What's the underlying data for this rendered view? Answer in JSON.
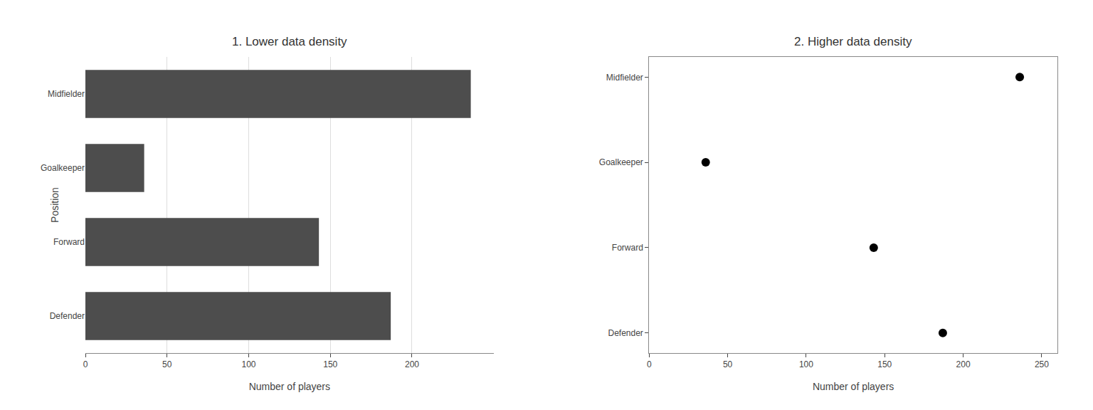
{
  "chart_data": [
    {
      "type": "bar",
      "orientation": "horizontal",
      "title": "1. Lower data density",
      "xlabel": "Number of players",
      "ylabel": "Position",
      "categories": [
        "Midfielder",
        "Goalkeeper",
        "Forward",
        "Defender"
      ],
      "values": [
        236,
        36,
        143,
        187
      ],
      "color": "#4d4d4d",
      "xlim": [
        0,
        250
      ],
      "xticks": [
        0,
        50,
        100,
        150,
        200
      ],
      "grid": true
    },
    {
      "type": "scatter",
      "title": "2. Higher data density",
      "xlabel": "Number of players",
      "categories": [
        "Midfielder",
        "Goalkeeper",
        "Forward",
        "Defender"
      ],
      "values": [
        236,
        36,
        143,
        187
      ],
      "color": "#000000",
      "marker": "circle",
      "xlim": [
        0,
        260
      ],
      "xticks": [
        0,
        50,
        100,
        150,
        200,
        250
      ],
      "grid": false
    }
  ]
}
